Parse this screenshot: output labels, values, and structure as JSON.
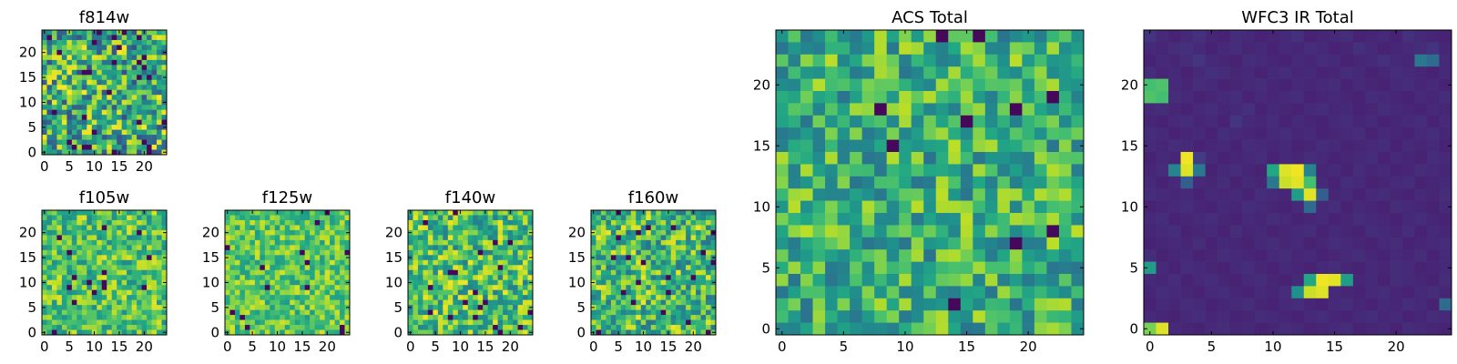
{
  "chart_data": [
    {
      "type": "heatmap",
      "title": "f814w",
      "colormap": "viridis",
      "grid_size": [
        25,
        25
      ],
      "xticks": [
        0,
        5,
        10,
        15,
        20
      ],
      "yticks": [
        0,
        5,
        10,
        15,
        20
      ],
      "xlim": [
        0,
        24
      ],
      "ylim": [
        0,
        24
      ],
      "values": []
    },
    {
      "type": "heatmap",
      "title": "f105w",
      "colormap": "viridis",
      "grid_size": [
        25,
        25
      ],
      "xticks": [
        0,
        5,
        10,
        15,
        20
      ],
      "yticks": [
        0,
        5,
        10,
        15,
        20
      ],
      "xlim": [
        0,
        24
      ],
      "ylim": [
        0,
        24
      ],
      "values": []
    },
    {
      "type": "heatmap",
      "title": "f125w",
      "colormap": "viridis",
      "grid_size": [
        25,
        25
      ],
      "xticks": [
        0,
        5,
        10,
        15,
        20
      ],
      "yticks": [
        0,
        5,
        10,
        15,
        20
      ],
      "xlim": [
        0,
        24
      ],
      "ylim": [
        0,
        24
      ],
      "values": []
    },
    {
      "type": "heatmap",
      "title": "f140w",
      "colormap": "viridis",
      "grid_size": [
        25,
        25
      ],
      "xticks": [
        0,
        5,
        10,
        15,
        20
      ],
      "yticks": [
        0,
        5,
        10,
        15,
        20
      ],
      "xlim": [
        0,
        24
      ],
      "ylim": [
        0,
        24
      ],
      "values": []
    },
    {
      "type": "heatmap",
      "title": "f160w",
      "colormap": "viridis",
      "grid_size": [
        25,
        25
      ],
      "xticks": [
        0,
        5,
        10,
        15,
        20
      ],
      "yticks": [
        0,
        5,
        10,
        15,
        20
      ],
      "xlim": [
        0,
        24
      ],
      "ylim": [
        0,
        24
      ],
      "values": []
    },
    {
      "type": "heatmap",
      "title": "ACS Total",
      "colormap": "viridis",
      "grid_size": [
        25,
        25
      ],
      "xticks": [
        0,
        5,
        10,
        15,
        20
      ],
      "yticks": [
        0,
        5,
        10,
        15,
        20
      ],
      "xlim": [
        0,
        24
      ],
      "ylim": [
        0,
        24
      ],
      "values": []
    },
    {
      "type": "heatmap",
      "title": "WFC3 IR Total",
      "colormap": "viridis",
      "grid_size": [
        25,
        25
      ],
      "xticks": [
        0,
        5,
        10,
        15,
        20
      ],
      "yticks": [
        0,
        5,
        10,
        15,
        20
      ],
      "xlim": [
        0,
        24
      ],
      "ylim": [
        0,
        24
      ],
      "values": [
        [
          0.15,
          0.12,
          0.1,
          0.12,
          0.14,
          0.11,
          0.1,
          0.13,
          0.12,
          0.1,
          0.11,
          0.12,
          0.14,
          0.1,
          0.11,
          0.12,
          0.13,
          0.1,
          0.11,
          0.12,
          0.1,
          0.14,
          0.12,
          0.11,
          0.1
        ],
        [
          0.12,
          0.11,
          0.13,
          0.14,
          0.12,
          0.1,
          0.12,
          0.13,
          0.11,
          0.12,
          0.1,
          0.12,
          0.11,
          0.13,
          0.12,
          0.1,
          0.11,
          0.14,
          0.12,
          0.1,
          0.11,
          0.12,
          0.13,
          0.15,
          0.11
        ],
        [
          0.1,
          0.12,
          0.11,
          0.13,
          0.16,
          0.12,
          0.11,
          0.1,
          0.13,
          0.12,
          0.11,
          0.1,
          0.12,
          0.11,
          0.13,
          0.12,
          0.1,
          0.11,
          0.12,
          0.14,
          0.12,
          0.11,
          0.4,
          0.35,
          0.12
        ],
        [
          0.13,
          0.11,
          0.12,
          0.1,
          0.12,
          0.14,
          0.13,
          0.11,
          0.12,
          0.1,
          0.12,
          0.13,
          0.11,
          0.12,
          0.1,
          0.11,
          0.13,
          0.12,
          0.1,
          0.11,
          0.13,
          0.12,
          0.11,
          0.1,
          0.12
        ],
        [
          0.7,
          0.72,
          0.12,
          0.11,
          0.13,
          0.12,
          0.1,
          0.11,
          0.12,
          0.13,
          0.11,
          0.1,
          0.12,
          0.11,
          0.12,
          0.13,
          0.1,
          0.12,
          0.11,
          0.1,
          0.12,
          0.13,
          0.11,
          0.12,
          0.1
        ],
        [
          0.72,
          0.7,
          0.13,
          0.12,
          0.1,
          0.11,
          0.12,
          0.13,
          0.1,
          0.12,
          0.11,
          0.12,
          0.13,
          0.1,
          0.11,
          0.12,
          0.11,
          0.1,
          0.13,
          0.12,
          0.11,
          0.1,
          0.12,
          0.11,
          0.13
        ],
        [
          0.12,
          0.13,
          0.11,
          0.1,
          0.12,
          0.13,
          0.11,
          0.12,
          0.14,
          0.1,
          0.12,
          0.11,
          0.1,
          0.12,
          0.13,
          0.11,
          0.12,
          0.1,
          0.11,
          0.13,
          0.12,
          0.11,
          0.1,
          0.12,
          0.11
        ],
        [
          0.11,
          0.1,
          0.12,
          0.13,
          0.11,
          0.12,
          0.1,
          0.16,
          0.12,
          0.11,
          0.13,
          0.1,
          0.12,
          0.11,
          0.1,
          0.12,
          0.13,
          0.11,
          0.12,
          0.1,
          0.11,
          0.12,
          0.13,
          0.1,
          0.12
        ],
        [
          0.13,
          0.12,
          0.1,
          0.11,
          0.12,
          0.1,
          0.13,
          0.12,
          0.11,
          0.1,
          0.12,
          0.13,
          0.11,
          0.12,
          0.1,
          0.11,
          0.12,
          0.13,
          0.1,
          0.12,
          0.11,
          0.1,
          0.12,
          0.13,
          0.11
        ],
        [
          0.12,
          0.11,
          0.13,
          0.12,
          0.1,
          0.11,
          0.12,
          0.1,
          0.13,
          0.12,
          0.11,
          0.12,
          0.1,
          0.11,
          0.13,
          0.12,
          0.1,
          0.11,
          0.12,
          0.13,
          0.1,
          0.12,
          0.11,
          0.12,
          0.1
        ],
        [
          0.1,
          0.12,
          0.11,
          0.98,
          0.18,
          0.12,
          0.1,
          0.11,
          0.12,
          0.13,
          0.1,
          0.12,
          0.11,
          0.13,
          0.12,
          0.1,
          0.11,
          0.12,
          0.13,
          0.1,
          0.12,
          0.11,
          0.1,
          0.13,
          0.12
        ],
        [
          0.11,
          0.13,
          0.45,
          0.95,
          0.4,
          0.1,
          0.12,
          0.13,
          0.11,
          0.1,
          0.6,
          0.95,
          0.98,
          0.45,
          0.11,
          0.12,
          0.1,
          0.13,
          0.11,
          0.12,
          0.1,
          0.11,
          0.13,
          0.12,
          0.11
        ],
        [
          0.12,
          0.1,
          0.12,
          0.3,
          0.12,
          0.11,
          0.13,
          0.1,
          0.12,
          0.11,
          0.4,
          0.92,
          0.96,
          0.7,
          0.12,
          0.1,
          0.13,
          0.12,
          0.1,
          0.11,
          0.12,
          0.13,
          0.1,
          0.11,
          0.12
        ],
        [
          0.13,
          0.12,
          0.11,
          0.12,
          0.1,
          0.12,
          0.11,
          0.12,
          0.1,
          0.13,
          0.12,
          0.11,
          0.55,
          0.96,
          0.3,
          0.11,
          0.12,
          0.1,
          0.12,
          0.13,
          0.11,
          0.1,
          0.12,
          0.11,
          0.13
        ],
        [
          0.1,
          0.11,
          0.12,
          0.13,
          0.11,
          0.1,
          0.12,
          0.11,
          0.13,
          0.12,
          0.11,
          0.1,
          0.12,
          0.35,
          0.12,
          0.13,
          0.1,
          0.12,
          0.11,
          0.1,
          0.13,
          0.12,
          0.11,
          0.1,
          0.12
        ],
        [
          0.12,
          0.13,
          0.1,
          0.11,
          0.12,
          0.13,
          0.11,
          0.1,
          0.12,
          0.11,
          0.13,
          0.12,
          0.1,
          0.11,
          0.12,
          0.1,
          0.11,
          0.13,
          0.12,
          0.11,
          0.1,
          0.12,
          0.13,
          0.11,
          0.1
        ],
        [
          0.11,
          0.12,
          0.13,
          0.1,
          0.11,
          0.12,
          0.1,
          0.13,
          0.11,
          0.12,
          0.1,
          0.11,
          0.12,
          0.13,
          0.1,
          0.12,
          0.11,
          0.1,
          0.13,
          0.12,
          0.11,
          0.13,
          0.1,
          0.12,
          0.11
        ],
        [
          0.1,
          0.11,
          0.12,
          0.11,
          0.13,
          0.1,
          0.12,
          0.11,
          0.1,
          0.12,
          0.13,
          0.11,
          0.12,
          0.1,
          0.11,
          0.13,
          0.12,
          0.11,
          0.1,
          0.12,
          0.13,
          0.1,
          0.11,
          0.12,
          0.13
        ],
        [
          0.13,
          0.1,
          0.11,
          0.12,
          0.1,
          0.11,
          0.13,
          0.12,
          0.11,
          0.1,
          0.12,
          0.13,
          0.11,
          0.12,
          0.1,
          0.11,
          0.12,
          0.13,
          0.11,
          0.1,
          0.12,
          0.11,
          0.13,
          0.1,
          0.12
        ],
        [
          0.55,
          0.12,
          0.1,
          0.13,
          0.12,
          0.11,
          0.1,
          0.12,
          0.13,
          0.11,
          0.1,
          0.12,
          0.11,
          0.1,
          0.12,
          0.13,
          0.11,
          0.1,
          0.12,
          0.11,
          0.13,
          0.12,
          0.1,
          0.11,
          0.12
        ],
        [
          0.12,
          0.11,
          0.13,
          0.1,
          0.12,
          0.13,
          0.11,
          0.1,
          0.12,
          0.13,
          0.11,
          0.1,
          0.12,
          0.6,
          0.98,
          0.96,
          0.55,
          0.11,
          0.12,
          0.1,
          0.13,
          0.12,
          0.11,
          0.1,
          0.13
        ],
        [
          0.11,
          0.13,
          0.12,
          0.11,
          0.1,
          0.12,
          0.13,
          0.11,
          0.1,
          0.12,
          0.11,
          0.13,
          0.5,
          0.92,
          0.95,
          0.12,
          0.11,
          0.1,
          0.12,
          0.13,
          0.11,
          0.1,
          0.12,
          0.13,
          0.11
        ],
        [
          0.1,
          0.12,
          0.11,
          0.13,
          0.12,
          0.1,
          0.11,
          0.12,
          0.13,
          0.11,
          0.1,
          0.12,
          0.13,
          0.11,
          0.1,
          0.12,
          0.13,
          0.11,
          0.1,
          0.12,
          0.11,
          0.13,
          0.12,
          0.1,
          0.35
        ],
        [
          0.12,
          0.11,
          0.1,
          0.12,
          0.13,
          0.11,
          0.12,
          0.1,
          0.11,
          0.13,
          0.12,
          0.11,
          0.1,
          0.12,
          0.13,
          0.11,
          0.1,
          0.12,
          0.13,
          0.11,
          0.12,
          0.1,
          0.11,
          0.13,
          0.12
        ],
        [
          0.8,
          0.95,
          0.12,
          0.11,
          0.1,
          0.12,
          0.13,
          0.11,
          0.12,
          0.1,
          0.11,
          0.13,
          0.12,
          0.1,
          0.11,
          0.12,
          0.13,
          0.1,
          0.11,
          0.12,
          0.1,
          0.13,
          0.12,
          0.11,
          0.1
        ]
      ]
    }
  ]
}
